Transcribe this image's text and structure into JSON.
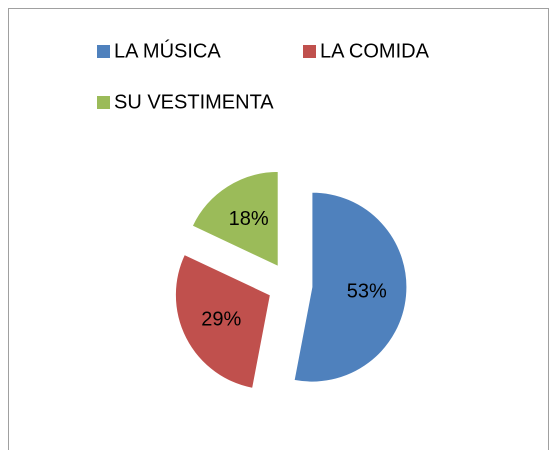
{
  "chart_data": {
    "type": "pie",
    "categories": [
      "LA MÚSICA",
      "LA COMIDA",
      "SU VESTIMENTA"
    ],
    "values": [
      53,
      29,
      18
    ],
    "value_labels": [
      "53%",
      "29%",
      "18%"
    ],
    "colors": [
      "#4f81bd",
      "#c0504d",
      "#9bbb59"
    ],
    "exploded": true
  }
}
